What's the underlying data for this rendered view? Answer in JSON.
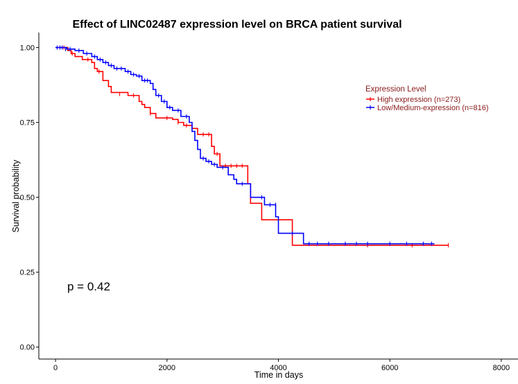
{
  "chart_data": {
    "type": "line",
    "subtype": "kaplan-meier",
    "title": "Effect of LINC02487 expression level on BRCA patient survival",
    "xlabel": "Time in days",
    "ylabel": "Survival probability",
    "xlim": [
      -300,
      8300
    ],
    "ylim": [
      -0.04,
      1.05
    ],
    "xticks": [
      0,
      2000,
      4000,
      6000,
      8000
    ],
    "xtick_labels": [
      "0",
      "2000",
      "4000",
      "6000",
      "8000"
    ],
    "yticks": [
      0.0,
      0.25,
      0.5,
      0.75,
      1.0
    ],
    "ytick_labels": [
      "0.00",
      "0.25",
      "0.50",
      "0.75",
      "1.00"
    ],
    "grid": false,
    "legend": {
      "title": "Expression Level",
      "placement": "right"
    },
    "annotation": "p = 0.42",
    "series": [
      {
        "name": "High expression (n=273)",
        "color": "#ff0000",
        "steps": [
          [
            0,
            1.0
          ],
          [
            220,
            0.99
          ],
          [
            280,
            0.98
          ],
          [
            350,
            0.97
          ],
          [
            480,
            0.96
          ],
          [
            650,
            0.95
          ],
          [
            700,
            0.93
          ],
          [
            750,
            0.92
          ],
          [
            850,
            0.89
          ],
          [
            950,
            0.87
          ],
          [
            1000,
            0.85
          ],
          [
            1300,
            0.84
          ],
          [
            1500,
            0.82
          ],
          [
            1550,
            0.81
          ],
          [
            1600,
            0.8
          ],
          [
            1700,
            0.78
          ],
          [
            1800,
            0.765
          ],
          [
            2100,
            0.76
          ],
          [
            2200,
            0.75
          ],
          [
            2300,
            0.74
          ],
          [
            2450,
            0.73
          ],
          [
            2550,
            0.71
          ],
          [
            2800,
            0.67
          ],
          [
            2850,
            0.645
          ],
          [
            2950,
            0.605
          ],
          [
            3450,
            0.545
          ],
          [
            3500,
            0.48
          ],
          [
            3700,
            0.425
          ],
          [
            4250,
            0.34
          ],
          [
            7050,
            0.34
          ]
        ],
        "censors": [
          [
            150,
            1.0
          ],
          [
            300,
            0.98
          ],
          [
            580,
            0.96
          ],
          [
            780,
            0.92
          ],
          [
            1150,
            0.845
          ],
          [
            1400,
            0.84
          ],
          [
            1700,
            0.78
          ],
          [
            2000,
            0.765
          ],
          [
            2200,
            0.75
          ],
          [
            2350,
            0.74
          ],
          [
            2650,
            0.71
          ],
          [
            2750,
            0.71
          ],
          [
            2900,
            0.645
          ],
          [
            3050,
            0.605
          ],
          [
            3150,
            0.605
          ],
          [
            3250,
            0.605
          ],
          [
            3350,
            0.605
          ],
          [
            5600,
            0.34
          ],
          [
            6400,
            0.34
          ],
          [
            7050,
            0.34
          ]
        ]
      },
      {
        "name": "Low/Medium-expression (n=816)",
        "color": "#0000ff",
        "steps": [
          [
            0,
            1.0
          ],
          [
            200,
            0.995
          ],
          [
            350,
            0.99
          ],
          [
            500,
            0.98
          ],
          [
            650,
            0.97
          ],
          [
            750,
            0.96
          ],
          [
            850,
            0.95
          ],
          [
            950,
            0.94
          ],
          [
            1050,
            0.93
          ],
          [
            1250,
            0.92
          ],
          [
            1350,
            0.91
          ],
          [
            1450,
            0.905
          ],
          [
            1550,
            0.89
          ],
          [
            1700,
            0.88
          ],
          [
            1750,
            0.86
          ],
          [
            1800,
            0.84
          ],
          [
            1900,
            0.82
          ],
          [
            2000,
            0.8
          ],
          [
            2100,
            0.79
          ],
          [
            2250,
            0.77
          ],
          [
            2400,
            0.75
          ],
          [
            2450,
            0.72
          ],
          [
            2500,
            0.69
          ],
          [
            2550,
            0.66
          ],
          [
            2600,
            0.63
          ],
          [
            2700,
            0.62
          ],
          [
            2800,
            0.61
          ],
          [
            2900,
            0.6
          ],
          [
            3100,
            0.575
          ],
          [
            3200,
            0.56
          ],
          [
            3250,
            0.545
          ],
          [
            3450,
            0.545
          ],
          [
            3500,
            0.5
          ],
          [
            3750,
            0.475
          ],
          [
            3950,
            0.435
          ],
          [
            4000,
            0.38
          ],
          [
            4450,
            0.345
          ],
          [
            6800,
            0.345
          ]
        ],
        "censors": [
          [
            30,
            1.0
          ],
          [
            80,
            1.0
          ],
          [
            120,
            1.0
          ],
          [
            180,
            0.995
          ],
          [
            260,
            0.995
          ],
          [
            420,
            0.99
          ],
          [
            560,
            0.98
          ],
          [
            700,
            0.97
          ],
          [
            800,
            0.96
          ],
          [
            900,
            0.95
          ],
          [
            1000,
            0.94
          ],
          [
            1100,
            0.93
          ],
          [
            1180,
            0.93
          ],
          [
            1300,
            0.92
          ],
          [
            1400,
            0.91
          ],
          [
            1500,
            0.905
          ],
          [
            1600,
            0.89
          ],
          [
            1650,
            0.89
          ],
          [
            1850,
            0.84
          ],
          [
            1950,
            0.82
          ],
          [
            2050,
            0.8
          ],
          [
            2200,
            0.79
          ],
          [
            2350,
            0.77
          ],
          [
            2650,
            0.63
          ],
          [
            2750,
            0.62
          ],
          [
            2850,
            0.61
          ],
          [
            3000,
            0.6
          ],
          [
            3350,
            0.545
          ],
          [
            3700,
            0.5
          ],
          [
            3850,
            0.475
          ],
          [
            3950,
            0.475
          ],
          [
            4250,
            0.38
          ],
          [
            4550,
            0.345
          ],
          [
            4700,
            0.345
          ],
          [
            4900,
            0.345
          ],
          [
            5200,
            0.345
          ],
          [
            5400,
            0.345
          ],
          [
            5600,
            0.345
          ],
          [
            6000,
            0.345
          ],
          [
            6300,
            0.345
          ],
          [
            6600,
            0.345
          ],
          [
            6750,
            0.345
          ]
        ]
      }
    ]
  }
}
